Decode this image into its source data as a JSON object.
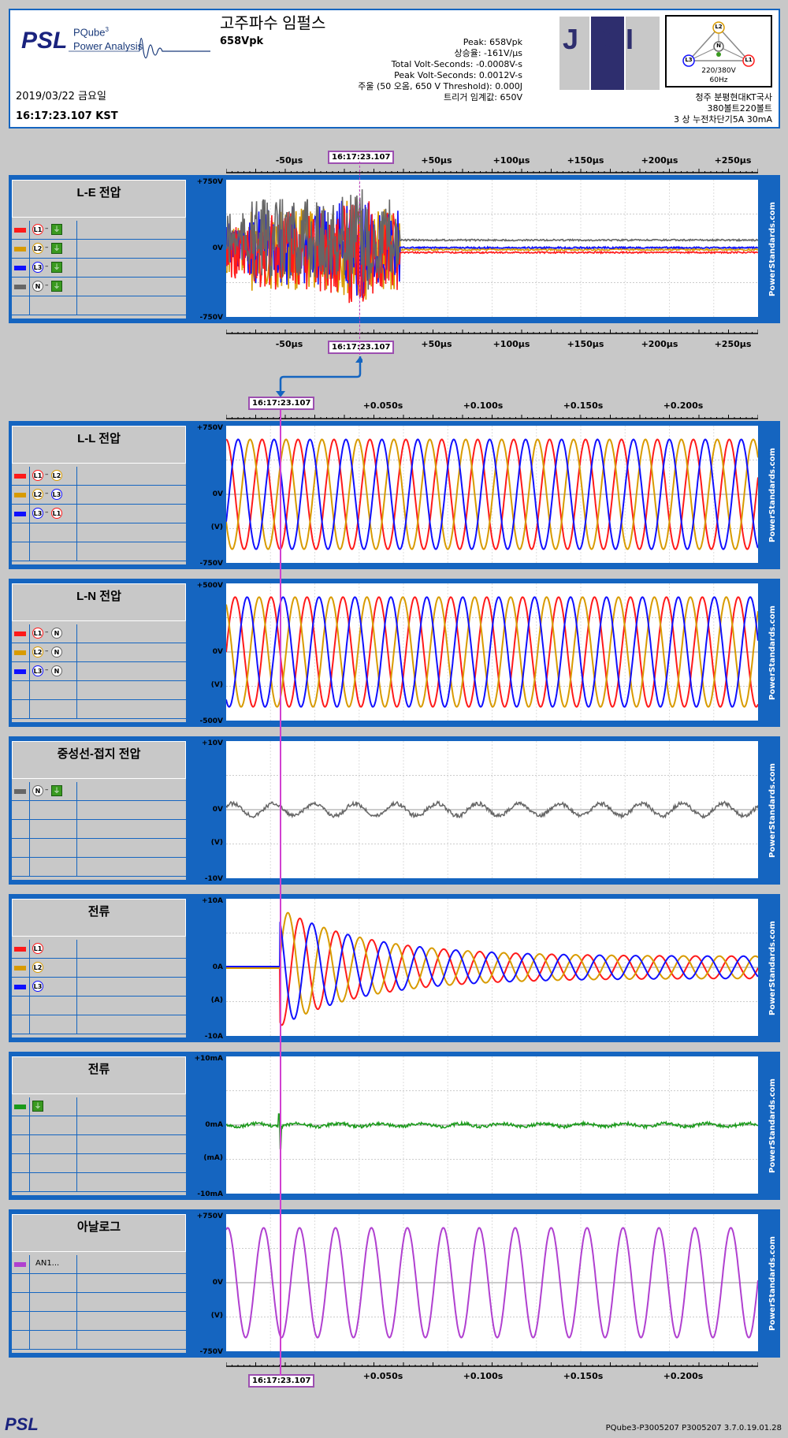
{
  "header": {
    "psl_logo": "PSL",
    "product_name": "PQube",
    "product_sup": "3",
    "product_sub": "Power Analysis",
    "title": "고주파수 임펄스",
    "subtitle": "658Vpk",
    "date": "2019/03/22 금요일",
    "time": "16:17:23.107 KST",
    "stats": [
      "Peak: 658Vpk",
      "상승율: -161V/µs",
      "Total Volt-Seconds: -0.0008V-s",
      "Peak Volt-Seconds: 0.0012V-s",
      "주울 (50 오옴, 650 V Threshold): 0.000J",
      "트리거 임계값: 650V"
    ],
    "company_logo": "JSI",
    "diagram_l1": "L1",
    "diagram_l2": "L2",
    "diagram_l3": "L3",
    "diagram_n": "N",
    "diagram_voltage": "220/380V",
    "diagram_freq": "60Hz",
    "site": [
      "청주 분평현대KT국사",
      "380볼트220볼트",
      "3 상 누전차단기5A 30mA"
    ]
  },
  "colors": {
    "l1": "#ff1a1a",
    "l2": "#d89b00",
    "l3": "#1010ff",
    "n": "#666666",
    "ground": "#1a9a1a",
    "analog": "#b040d0",
    "accent": "#1565c0",
    "marker": "#9c4fb0"
  },
  "timestamp": "16:17:23.107",
  "top_axis": {
    "ticks": [
      "-50µs",
      "+50µs",
      "+100µs",
      "+150µs",
      "+200µs",
      "+250µs"
    ]
  },
  "main_axis": {
    "ticks": [
      "+0.050s",
      "+0.100s",
      "+0.150s",
      "+0.200s"
    ]
  },
  "panels": [
    {
      "id": "le",
      "title": "L-E 전압",
      "ymax": "+750V",
      "ymid": "0V",
      "unit": "",
      "ymin": "-750V",
      "rows": [
        [
          "L1",
          "⏚"
        ],
        [
          "L2",
          "⏚"
        ],
        [
          "L3",
          "⏚"
        ],
        [
          "N",
          "⏚"
        ]
      ]
    },
    {
      "id": "ll",
      "title": "L-L 전압",
      "ymax": "+750V",
      "ymid": "0V",
      "unit": "(V)",
      "ymin": "-750V",
      "rows": [
        [
          "L1",
          "L2"
        ],
        [
          "L2",
          "L3"
        ],
        [
          "L3",
          "L1"
        ]
      ]
    },
    {
      "id": "ln",
      "title": "L-N 전압",
      "ymax": "+500V",
      "ymid": "0V",
      "unit": "(V)",
      "ymin": "-500V",
      "rows": [
        [
          "L1",
          "N"
        ],
        [
          "L2",
          "N"
        ],
        [
          "L3",
          "N"
        ]
      ]
    },
    {
      "id": "ng",
      "title": "중성선-접지 전압",
      "ymax": "+10V",
      "ymid": "0V",
      "unit": "(V)",
      "ymin": "-10V",
      "rows": [
        [
          "N",
          "⏚"
        ]
      ]
    },
    {
      "id": "cur",
      "title": "전류",
      "ymax": "+10A",
      "ymid": "0A",
      "unit": "(A)",
      "ymin": "-10A",
      "rows": [
        [
          "L1"
        ],
        [
          "L2"
        ],
        [
          "L3"
        ]
      ]
    },
    {
      "id": "gcur",
      "title": "전류",
      "ymax": "+10mA",
      "ymid": "0mA",
      "unit": "(mA)",
      "ymin": "-10mA",
      "rows": [
        [
          "⏚"
        ]
      ]
    },
    {
      "id": "an",
      "title": "아날로그",
      "ymax": "+750V",
      "ymid": "0V",
      "unit": "(V)",
      "ymin": "-750V",
      "rows": [
        [
          "AN1..."
        ]
      ]
    }
  ],
  "watermark": "PowerStandards.com",
  "footer": {
    "logo": "PSL",
    "version": "PQube3-P3005207   P3005207  3.7.0.19.01.28"
  }
}
